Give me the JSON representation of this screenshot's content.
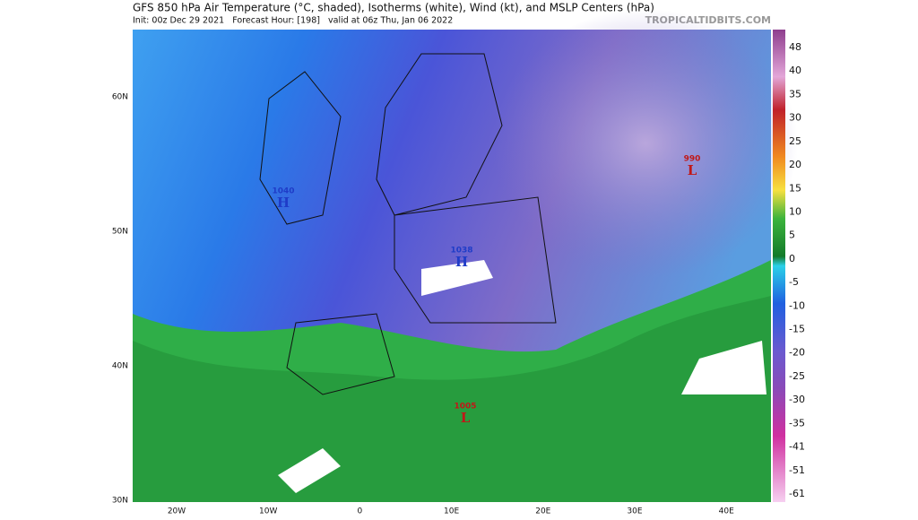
{
  "header": {
    "title": "GFS 850 hPa Air Temperature (°C, shaded), Isotherms (white), Wind (kt), and MSLP Centers (hPa)",
    "subtitle": "Init: 00z Dec 29 2021   Forecast Hour: [198]   valid at 06z Thu, Jan 06 2022",
    "brand": "TROPICALTIDBITS.COM"
  },
  "map": {
    "lat_labels": [
      "60N",
      "50N",
      "40N",
      "30N"
    ],
    "lon_labels": [
      "20W",
      "10W",
      "0",
      "10E",
      "20E",
      "30E",
      "40E"
    ],
    "pressure_centers": [
      {
        "value": "1040",
        "letter": "H"
      },
      {
        "value": "1038",
        "letter": "H"
      },
      {
        "value": "990",
        "letter": "L"
      },
      {
        "value": "1005",
        "letter": "L"
      }
    ]
  },
  "colorbar": {
    "labels": [
      "48",
      "40",
      "35",
      "30",
      "25",
      "20",
      "15",
      "10",
      "5",
      "0",
      "-5",
      "-10",
      "-15",
      "-20",
      "-25",
      "-30",
      "-35",
      "-41",
      "-51",
      "-61"
    ]
  }
}
